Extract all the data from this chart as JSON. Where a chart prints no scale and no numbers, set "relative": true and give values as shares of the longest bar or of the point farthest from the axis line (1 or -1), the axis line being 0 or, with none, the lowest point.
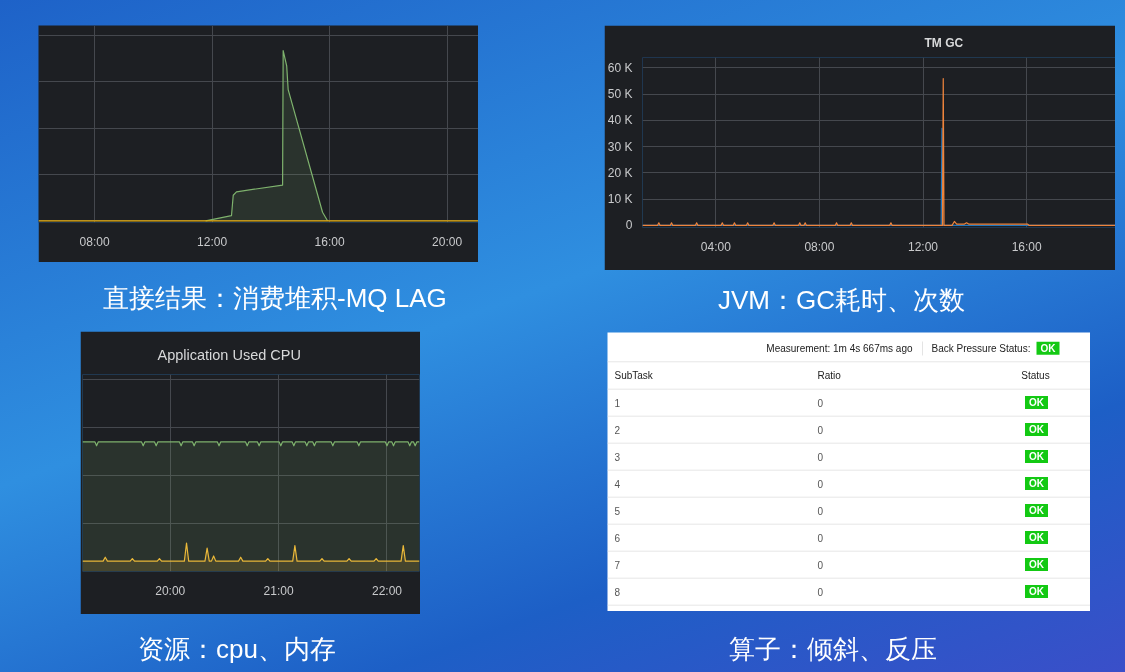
{
  "chart_data": [
    {
      "type": "area",
      "annotations": [
        "直接结果：消费堆积-MQ LAG"
      ],
      "relative": true,
      "xlim": [
        6.09,
        21.07
      ],
      "xticks": [
        {
          "value": 8,
          "label": "08:00"
        },
        {
          "value": 12,
          "label": "12:00"
        },
        {
          "value": 16,
          "label": "16:00"
        },
        {
          "value": 20,
          "label": "20:00"
        }
      ],
      "grid": true,
      "series": [
        {
          "type": "area",
          "color": "#7eb26d",
          "x": [
            11.78,
            12.66,
            12.72,
            12.83,
            14.4,
            14.42,
            14.54,
            14.59,
            15.76,
            15.93
          ],
          "values": [
            0,
            0.03,
            0.15,
            0.17,
            0.21,
            1,
            0.91,
            0.77,
            0.05,
            0
          ]
        },
        {
          "type": "line",
          "color": "#e5ac0e",
          "x": [
            6.09,
            21.07
          ],
          "values": [
            0,
            0
          ]
        }
      ]
    },
    {
      "type": "line",
      "title": "TM GC",
      "annotations": [
        "JVM：GC耗时、次数"
      ],
      "xlim": [
        1.17,
        19.43
      ],
      "ylim": [
        -800,
        64000
      ],
      "xticks": [
        {
          "value": 4,
          "label": "04:00"
        },
        {
          "value": 8,
          "label": "08:00"
        },
        {
          "value": 12,
          "label": "12:00"
        },
        {
          "value": 16,
          "label": "16:00"
        }
      ],
      "yticks": [
        0,
        {
          "value": 10000,
          "label": "10 K"
        },
        {
          "value": 20000,
          "label": "20 K"
        },
        {
          "value": 30000,
          "label": "30 K"
        },
        {
          "value": 40000,
          "label": "40 K"
        },
        {
          "value": 50000,
          "label": "50 K"
        },
        {
          "value": 60000,
          "label": "60 K"
        }
      ],
      "grid": true,
      "series": [
        {
          "color": "#1f78c1",
          "x": [
            1.17,
            12.7,
            12.73,
            12.76,
            19.43
          ],
          "values": [
            0,
            0,
            37000,
            0,
            0
          ]
        },
        {
          "color": "#ef843c",
          "x": [
            1.17,
            1.75,
            1.8,
            1.85,
            2.24,
            2.29,
            2.34,
            3.21,
            3.26,
            3.31,
            4.2,
            4.25,
            4.3,
            4.67,
            4.72,
            4.77,
            5.18,
            5.23,
            5.28,
            6.2,
            6.25,
            6.3,
            7.19,
            7.24,
            7.29,
            7.4,
            7.45,
            7.5,
            8.61,
            8.66,
            8.71,
            9.18,
            9.23,
            9.28,
            10.71,
            10.76,
            10.81,
            12.75,
            12.78,
            12.81,
            13.12,
            13.21,
            13.3,
            13.6,
            13.68,
            13.76,
            16.03,
            16.1,
            19.43
          ],
          "values": [
            0,
            0,
            1000,
            0,
            0,
            1000,
            0,
            0,
            1000,
            0,
            0,
            1000,
            0,
            0,
            1000,
            0,
            0,
            1000,
            0,
            0,
            1000,
            0,
            0,
            1000,
            0,
            0,
            1000,
            0,
            0,
            1000,
            0,
            0,
            1000,
            0,
            0,
            1000,
            0,
            0,
            56000,
            0,
            0,
            1500,
            500,
            500,
            1000,
            500,
            500,
            0,
            0
          ]
        }
      ]
    },
    {
      "type": "area",
      "title": "Application Used CPU",
      "annotations": [
        "资源：cpu、内存"
      ],
      "relative": true,
      "xlim": [
        19.19,
        22.3
      ],
      "xticks": [
        {
          "value": 20,
          "label": "20:00"
        },
        {
          "value": 21,
          "label": "21:00"
        },
        {
          "value": 22,
          "label": "22:00"
        }
      ],
      "grid": true,
      "series": [
        {
          "type": "area",
          "color": "#7eb26d",
          "x": [
            19.19,
            19.305,
            19.32,
            19.335,
            19.735,
            19.75,
            19.765,
            19.855,
            19.87,
            19.885,
            20.085,
            20.1,
            20.115,
            20.205,
            20.22,
            20.235,
            20.435,
            20.45,
            20.465,
            20.695,
            20.71,
            20.725,
            20.805,
            20.82,
            20.835,
            21.005,
            21.02,
            21.035,
            21.125,
            21.14,
            21.155,
            21.245,
            21.26,
            21.275,
            21.315,
            21.33,
            21.345,
            21.485,
            21.5,
            21.515,
            21.725,
            21.74,
            21.755,
            21.985,
            22.0,
            22.015,
            22.045,
            22.06,
            22.075,
            22.195,
            22.21,
            22.225,
            22.245,
            22.26,
            22.275,
            22.3
          ],
          "values": [
            1,
            1,
            0.97,
            1,
            1,
            0.97,
            1,
            1,
            0.97,
            1,
            1,
            0.97,
            1,
            1,
            0.97,
            1,
            1,
            0.97,
            1,
            1,
            0.97,
            1,
            1,
            0.97,
            1,
            1,
            0.97,
            1,
            1,
            0.97,
            1,
            1,
            0.97,
            1,
            1,
            0.97,
            1,
            1,
            0.97,
            1,
            1,
            0.97,
            1,
            1,
            0.97,
            1,
            1,
            0.97,
            1,
            1,
            0.97,
            1,
            1,
            0.97,
            1,
            1
          ]
        },
        {
          "type": "area",
          "color": "#eab839",
          "x": [
            19.19,
            19.38,
            19.4,
            19.42,
            19.63,
            19.65,
            19.67,
            19.88,
            19.9,
            19.92,
            20.13,
            20.15,
            20.17,
            20.32,
            20.34,
            20.36,
            20.38,
            20.4,
            20.42,
            20.63,
            20.65,
            20.67,
            20.88,
            20.9,
            20.92,
            21.13,
            21.15,
            21.17,
            21.38,
            21.4,
            21.42,
            21.63,
            21.65,
            21.67,
            21.88,
            21.9,
            21.92,
            22.13,
            22.15,
            22.17,
            22.3
          ],
          "values": [
            0.08,
            0.08,
            0.11,
            0.08,
            0.08,
            0.1,
            0.08,
            0.08,
            0.1,
            0.08,
            0.08,
            0.22,
            0.08,
            0.08,
            0.18,
            0.08,
            0.08,
            0.12,
            0.08,
            0.08,
            0.11,
            0.08,
            0.08,
            0.1,
            0.08,
            0.08,
            0.2,
            0.08,
            0.08,
            0.1,
            0.08,
            0.08,
            0.1,
            0.08,
            0.08,
            0.1,
            0.08,
            0.08,
            0.2,
            0.08,
            0.08
          ]
        }
      ]
    },
    {
      "type": "heatmap",
      "annotations": [
        "算子：倾斜、反压",
        "Measurement: 1m 4s 667ms ago",
        "Back Pressure Status:",
        "OK"
      ],
      "color": "#13c913",
      "ylabel": "SubTask",
      "categories": [
        "Ratio",
        "Status"
      ],
      "y_categories": [
        "1",
        "2",
        "3",
        "4",
        "5",
        "6",
        "7",
        "8"
      ],
      "cells": [
        [
          0,
          null
        ],
        [
          0,
          null
        ],
        [
          0,
          null
        ],
        [
          0,
          null
        ],
        [
          0,
          null
        ],
        [
          0,
          null
        ],
        [
          0,
          null
        ],
        [
          0,
          null
        ]
      ],
      "cell_labels": [
        [
          "0",
          "OK"
        ],
        [
          "0",
          "OK"
        ],
        [
          "0",
          "OK"
        ],
        [
          "0",
          "OK"
        ],
        [
          "0",
          "OK"
        ],
        [
          "0",
          "OK"
        ],
        [
          "0",
          "OK"
        ],
        [
          "0",
          "OK"
        ]
      ]
    }
  ]
}
